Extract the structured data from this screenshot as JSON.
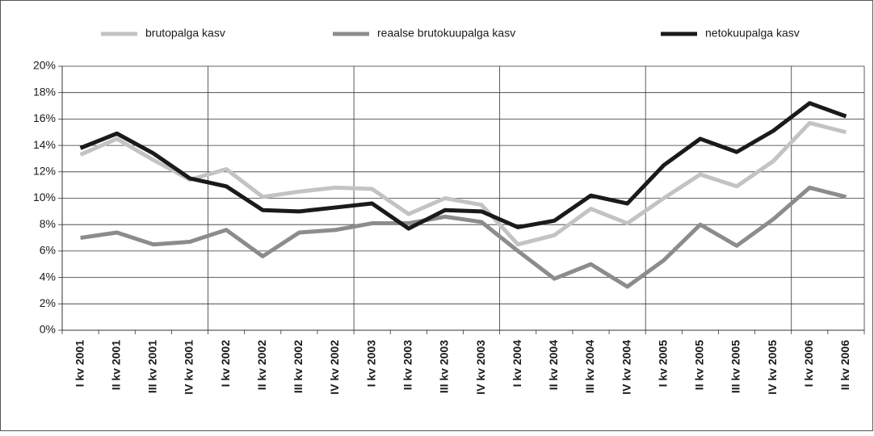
{
  "chart_data": {
    "type": "line",
    "categories": [
      "I kv 2001",
      "II kv 2001",
      "III kv 2001",
      "IV kv 2001",
      "I kv 2002",
      "II kv 2002",
      "III kv 2002",
      "IV kv 2002",
      "I kv 2003",
      "II kv 2003",
      "III kv 2003",
      "IV kv 2003",
      "I kv 2004",
      "II kv 2004",
      "III kv 2004",
      "IV kv 2004",
      "I kv 2005",
      "II kv 2005",
      "III kv 2005",
      "IV kv 2005",
      "I kv 2006",
      "II kv 2006"
    ],
    "series": [
      {
        "name": "brutopalga kasv",
        "color": "#c3c3c3",
        "values": [
          13.3,
          14.5,
          12.9,
          11.4,
          12.2,
          10.1,
          10.5,
          10.8,
          10.7,
          8.8,
          10.0,
          9.5,
          6.5,
          7.2,
          9.2,
          8.1,
          10.0,
          11.8,
          10.9,
          12.8,
          15.7,
          15.0
        ]
      },
      {
        "name": "reaalse brutokuupalga kasv",
        "color": "#8c8c8c",
        "values": [
          7.0,
          7.4,
          6.5,
          6.7,
          7.6,
          5.6,
          7.4,
          7.6,
          8.1,
          8.1,
          8.6,
          8.2,
          6.0,
          3.9,
          5.0,
          3.3,
          5.3,
          8.0,
          6.4,
          8.4,
          10.8,
          10.1
        ]
      },
      {
        "name": "netokuupalga kasv",
        "color": "#1a1a1a",
        "values": [
          13.8,
          14.9,
          13.4,
          11.5,
          10.9,
          9.1,
          9.0,
          9.3,
          9.6,
          7.7,
          9.1,
          9.0,
          7.8,
          8.3,
          10.2,
          9.6,
          12.5,
          14.5,
          13.5,
          15.1,
          17.2,
          16.2
        ]
      }
    ],
    "ylim": [
      0,
      20
    ],
    "yticks": [
      {
        "value": 0,
        "label": "0%"
      },
      {
        "value": 2,
        "label": "2%"
      },
      {
        "value": 4,
        "label": "4%"
      },
      {
        "value": 6,
        "label": "6%"
      },
      {
        "value": 8,
        "label": "8%"
      },
      {
        "value": 10,
        "label": "10%"
      },
      {
        "value": 12,
        "label": "12%"
      },
      {
        "value": 14,
        "label": "14%"
      },
      {
        "value": 16,
        "label": "16%"
      },
      {
        "value": 18,
        "label": "18%"
      },
      {
        "value": 20,
        "label": "20%"
      }
    ],
    "grid": true,
    "legend": "top"
  }
}
